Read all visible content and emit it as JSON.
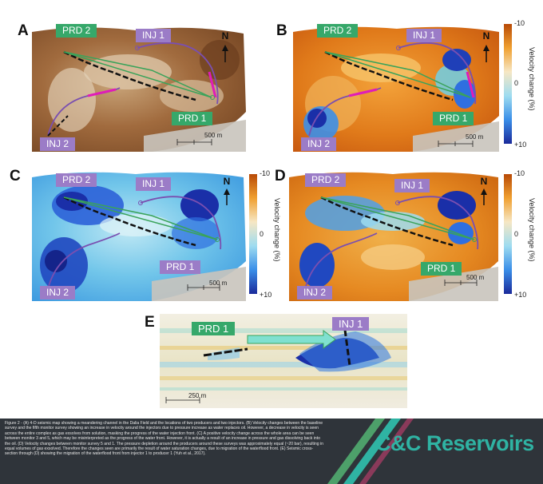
{
  "panels": {
    "a": {
      "letter": "A",
      "prd2": "PRD 2",
      "inj1": "INJ 1",
      "prd1": "PRD 1",
      "inj2": "INJ 2",
      "north": "N",
      "scale": "500 m"
    },
    "b": {
      "letter": "B",
      "prd2": "PRD 2",
      "inj1": "INJ 1",
      "prd1": "PRD 1",
      "inj2": "INJ 2",
      "north": "N",
      "scale": "500 m"
    },
    "c": {
      "letter": "C",
      "prd2": "PRD 2",
      "inj1": "INJ 1",
      "prd1": "PRD 1",
      "inj2": "INJ 2",
      "north": "N",
      "scale": "500 m"
    },
    "d": {
      "letter": "D",
      "prd2": "PRD 2",
      "inj1": "INJ 1",
      "prd1": "PRD 1",
      "inj2": "INJ 2",
      "north": "N",
      "scale": "500 m"
    },
    "e": {
      "letter": "E",
      "prd1": "PRD 1",
      "inj1": "INJ 1",
      "scale": "250 m"
    }
  },
  "colorbar": {
    "label": "Velocity change (%)",
    "top": "-10",
    "mid": "0",
    "bottom": "+10"
  },
  "caption": "Figure 2 - (A) 4-D seismic map showing a meandering channel in the Dalia Field and the locations of two producers and two injectors. (B) Velocity changes between the baseline survey and the fifth monitor survey showing an increase in velocity around the injectors due to pressure increase as water replaces oil. However, a decrease in velocity is seen across the entire complex as gas exsolves from solution, masking the progress of the water injection front. (C) A positive velocity change across the whole area can be seen between monitor 3 and 5, which may be misinterpreted as the progress of the water front. However, it is actually a result of an increase in pressure and gas dissolving back into the oil. (D) Velocity changes between monitor survey 5 and 1. The pressure depletion around the producers around these surveys was approximately equal (~20 bar), resulting in equal volumes of gas exsolved. Therefore the changes seen are primarily the result of water saturation changes, due to migration of the waterflood front. (E) Seismic cross-section through (D) showing the migration of the waterflood front from injector 1 to producer 1 (Yuh et al., 2017).",
  "brand": "C&C Reservoirs",
  "colors": {
    "caption_bg": "#2f343a",
    "brand": "#2fb3a3",
    "tag_green": "#36a86a",
    "tag_purple": "#9b7cc7"
  }
}
